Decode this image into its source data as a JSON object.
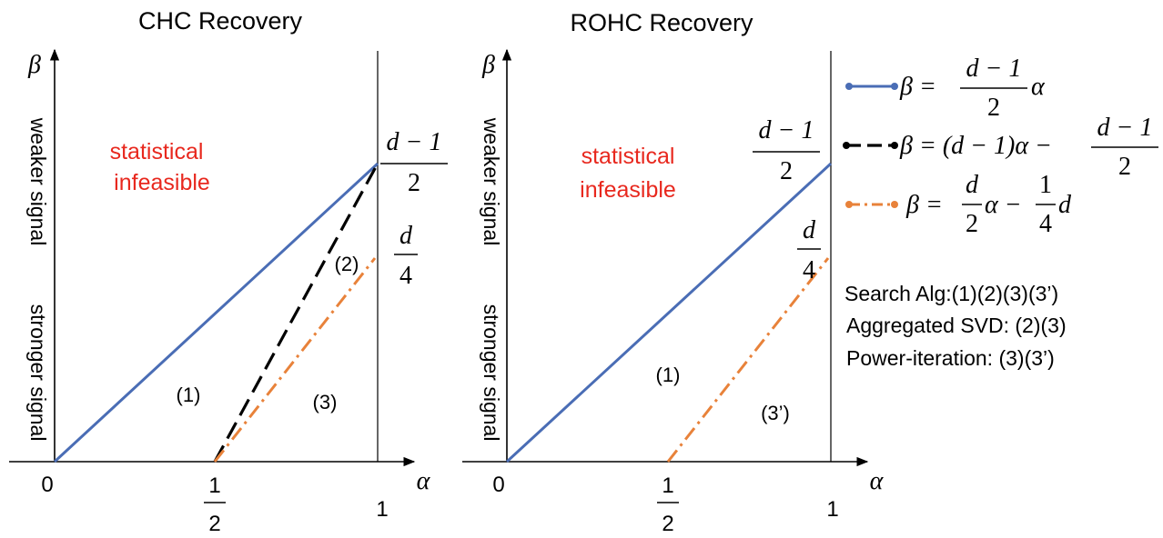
{
  "panels": {
    "chc": {
      "title": "CHC Recovery",
      "infeasible_line1": "statistical",
      "infeasible_line2": "infeasible",
      "region1": "(1)",
      "region2": "(2)",
      "region3": "(3)"
    },
    "rohc": {
      "title": "ROHC Recovery",
      "infeasible_line1": "statistical",
      "infeasible_line2": "infeasible",
      "region1": "(1)",
      "region3prime": "(3’)"
    }
  },
  "axes": {
    "x_symbol": "α",
    "y_symbol": "β",
    "origin": "0",
    "half_num": "1",
    "half_den": "2",
    "one": "1",
    "weaker": "weaker signal",
    "stronger": "stronger signal"
  },
  "levels": {
    "top_num": "d − 1",
    "top_den": "2",
    "d4_num": "d",
    "d4_den": "4"
  },
  "legend": {
    "blue": {
      "color": "#4a6db5",
      "lhs": "β =",
      "num": "d − 1",
      "den": "2",
      "tail": "α"
    },
    "black": {
      "color": "#000000",
      "lhs": "β = (d − 1)α −",
      "num": "d − 1",
      "den": "2"
    },
    "orange": {
      "color": "#e8823a",
      "lhs": "β =",
      "f1num": "d",
      "f1den": "2",
      "mid": "α −",
      "f2num": "1",
      "f2den": "4",
      "tail": "d"
    }
  },
  "summary": {
    "line1": "Search Alg:(1)(2)(3)(3’)",
    "line2": "Aggregated SVD: (2)(3)",
    "line3": "Power-iteration: (3)(3’)"
  },
  "colors": {
    "blue": "#4a6db5",
    "black": "#000000",
    "orange": "#e8823a",
    "infeasible": "#e8281e"
  }
}
